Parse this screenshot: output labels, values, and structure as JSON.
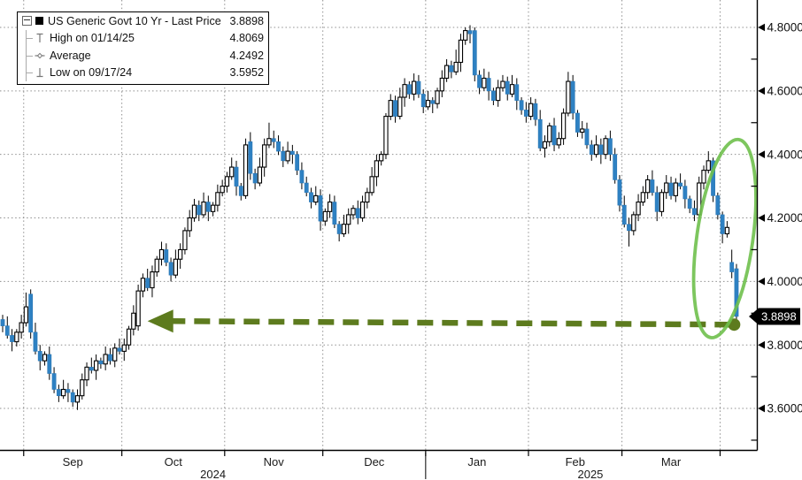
{
  "legend": {
    "series_label": "US Generic Govt 10 Yr - Last Price",
    "series_value": "3.8898",
    "items": [
      {
        "icon": "high-marker-icon",
        "label": "High on 01/14/25",
        "value": "4.8069"
      },
      {
        "icon": "average-marker-icon",
        "label": "Average",
        "value": "4.2492"
      },
      {
        "icon": "low-marker-icon",
        "label": "Low on 09/17/24",
        "value": "3.5952"
      }
    ]
  },
  "chart_data": {
    "type": "candlestick",
    "title": "US Generic Govt 10 Yr - Last Price",
    "grid": true,
    "legend_position": "top-left",
    "y_axis": {
      "side": "right",
      "min": 3.47,
      "max": 4.89,
      "major_ticks": [
        4.8,
        4.6,
        4.4,
        4.2,
        4.0,
        3.8,
        3.6
      ],
      "major_labels": [
        "4.8000",
        "4.6000",
        "4.4000",
        "4.2000",
        "4.0000",
        "3.8000",
        "3.6000"
      ],
      "minor_step": 0.1
    },
    "x_axis": {
      "months": [
        {
          "label": "Sep",
          "start_index": 5
        },
        {
          "label": "Oct",
          "start_index": 26
        },
        {
          "label": "Nov",
          "start_index": 48
        },
        {
          "label": "Dec",
          "start_index": 69
        },
        {
          "label": "Jan",
          "start_index": 91
        },
        {
          "label": "Feb",
          "start_index": 113
        },
        {
          "label": "Mar",
          "start_index": 133
        },
        {
          "label": "",
          "start_index": 154
        }
      ],
      "years": [
        {
          "label": "2024",
          "from_index": -0.5,
          "to_index": 90.5
        },
        {
          "label": "2025",
          "from_index": 90.5,
          "to_index": 161.0
        }
      ]
    },
    "last_price": {
      "value": 3.8898,
      "label": "3.8898"
    },
    "high_annotation": {
      "date": "01/14/25",
      "value": 4.8069
    },
    "average": 4.2492,
    "low_annotation": {
      "date": "09/17/24",
      "value": 3.5952
    },
    "colors": {
      "up_fill": "#ffffff",
      "up_border": "#000000",
      "down_fill": "#2e81c3",
      "down_border": "#2a77b5",
      "wick": "#000000",
      "grid": "#8f8f8f",
      "axis": "#000000",
      "tag_bg": "#000000",
      "tag_text": "#ffffff",
      "ellipse": "#6fc04d",
      "arrow": "#5d7b1e"
    },
    "annotations": {
      "highlight_ellipse": {
        "from_index": 148.5,
        "to_index": 160.5,
        "top_price": 4.45,
        "bottom_price": 3.82,
        "rotate_deg": 8
      },
      "arrow_to_last_price": {
        "dot_index": 156.5,
        "dot_price": 3.864,
        "tip_index": 31,
        "tip_price": 3.875
      }
    },
    "candles": [
      [
        3.88,
        3.895,
        3.84,
        3.86
      ],
      [
        3.86,
        3.89,
        3.82,
        3.83
      ],
      [
        3.83,
        3.85,
        3.78,
        3.81
      ],
      [
        3.81,
        3.85,
        3.795,
        3.84
      ],
      [
        3.84,
        3.895,
        3.82,
        3.87
      ],
      [
        3.87,
        3.965,
        3.858,
        3.92
      ],
      [
        3.96,
        3.975,
        3.82,
        3.84
      ],
      [
        3.84,
        3.87,
        3.77,
        3.78
      ],
      [
        3.78,
        3.8,
        3.72,
        3.75
      ],
      [
        3.75,
        3.78,
        3.735,
        3.77
      ],
      [
        3.77,
        3.795,
        3.69,
        3.71
      ],
      [
        3.71,
        3.73,
        3.648,
        3.66
      ],
      [
        3.66,
        3.675,
        3.62,
        3.64
      ],
      [
        3.64,
        3.69,
        3.63,
        3.66
      ],
      [
        3.66,
        3.68,
        3.62,
        3.65
      ],
      [
        3.65,
        3.66,
        3.605,
        3.62
      ],
      [
        3.62,
        3.66,
        3.5952,
        3.64
      ],
      [
        3.64,
        3.71,
        3.628,
        3.69
      ],
      [
        3.69,
        3.745,
        3.67,
        3.73
      ],
      [
        3.73,
        3.76,
        3.71,
        3.72
      ],
      [
        3.72,
        3.77,
        3.69,
        3.75
      ],
      [
        3.75,
        3.76,
        3.725,
        3.74
      ],
      [
        3.74,
        3.795,
        3.72,
        3.77
      ],
      [
        3.77,
        3.79,
        3.738,
        3.75
      ],
      [
        3.75,
        3.805,
        3.73,
        3.79
      ],
      [
        3.79,
        3.82,
        3.77,
        3.78
      ],
      [
        3.78,
        3.82,
        3.75,
        3.8
      ],
      [
        3.8,
        3.86,
        3.785,
        3.85
      ],
      [
        3.85,
        3.925,
        3.83,
        3.9
      ],
      [
        3.86,
        3.99,
        3.845,
        3.97
      ],
      [
        3.97,
        4.025,
        3.95,
        4.01
      ],
      [
        4.01,
        4.04,
        3.97,
        3.98
      ],
      [
        3.98,
        4.05,
        3.95,
        4.03
      ],
      [
        4.03,
        4.08,
        4.015,
        4.07
      ],
      [
        4.07,
        4.125,
        4.05,
        4.1
      ],
      [
        4.1,
        4.12,
        4.048,
        4.06
      ],
      [
        4.06,
        4.075,
        4.0,
        4.02
      ],
      [
        4.02,
        4.1,
        4.01,
        4.07
      ],
      [
        4.07,
        4.12,
        4.04,
        4.1
      ],
      [
        4.1,
        4.17,
        4.085,
        4.16
      ],
      [
        4.16,
        4.225,
        4.14,
        4.2
      ],
      [
        4.2,
        4.26,
        4.188,
        4.24
      ],
      [
        4.24,
        4.255,
        4.19,
        4.21
      ],
      [
        4.21,
        4.28,
        4.2,
        4.25
      ],
      [
        4.25,
        4.27,
        4.19,
        4.22
      ],
      [
        4.22,
        4.25,
        4.205,
        4.24
      ],
      [
        4.24,
        4.305,
        4.22,
        4.28
      ],
      [
        4.28,
        4.32,
        4.268,
        4.3
      ],
      [
        4.3,
        4.345,
        4.28,
        4.33
      ],
      [
        4.33,
        4.39,
        4.32,
        4.36
      ],
      [
        4.36,
        4.38,
        4.27,
        4.3
      ],
      [
        4.3,
        4.31,
        4.255,
        4.27
      ],
      [
        4.27,
        4.45,
        4.26,
        4.43
      ],
      [
        4.44,
        4.47,
        4.32,
        4.34
      ],
      [
        4.34,
        4.355,
        4.29,
        4.31
      ],
      [
        4.31,
        4.39,
        4.3,
        4.36
      ],
      [
        4.36,
        4.45,
        4.33,
        4.43
      ],
      [
        4.43,
        4.5,
        4.42,
        4.45
      ],
      [
        4.45,
        4.475,
        4.42,
        4.44
      ],
      [
        4.44,
        4.46,
        4.398,
        4.41
      ],
      [
        4.41,
        4.425,
        4.36,
        4.38
      ],
      [
        4.38,
        4.44,
        4.37,
        4.41
      ],
      [
        4.41,
        4.43,
        4.37,
        4.4
      ],
      [
        4.4,
        4.41,
        4.335,
        4.35
      ],
      [
        4.35,
        4.375,
        4.29,
        4.31
      ],
      [
        4.31,
        4.33,
        4.268,
        4.28
      ],
      [
        4.28,
        4.295,
        4.23,
        4.25
      ],
      [
        4.25,
        4.3,
        4.24,
        4.27
      ],
      [
        4.27,
        4.29,
        4.16,
        4.19
      ],
      [
        4.19,
        4.23,
        4.175,
        4.22
      ],
      [
        4.22,
        4.275,
        4.2,
        4.25
      ],
      [
        4.25,
        4.27,
        4.168,
        4.18
      ],
      [
        4.18,
        4.19,
        4.126,
        4.15
      ],
      [
        4.15,
        4.21,
        4.14,
        4.18
      ],
      [
        4.18,
        4.23,
        4.15,
        4.21
      ],
      [
        4.21,
        4.24,
        4.195,
        4.23
      ],
      [
        4.23,
        4.255,
        4.18,
        4.2
      ],
      [
        4.2,
        4.27,
        4.188,
        4.25
      ],
      [
        4.25,
        4.295,
        4.23,
        4.28
      ],
      [
        4.28,
        4.36,
        4.27,
        4.33
      ],
      [
        4.33,
        4.4,
        4.3,
        4.38
      ],
      [
        4.38,
        4.41,
        4.365,
        4.4
      ],
      [
        4.4,
        4.53,
        4.385,
        4.52
      ],
      [
        4.52,
        4.59,
        4.508,
        4.57
      ],
      [
        4.57,
        4.585,
        4.5,
        4.52
      ],
      [
        4.52,
        4.61,
        4.51,
        4.58
      ],
      [
        4.58,
        4.64,
        4.55,
        4.62
      ],
      [
        4.62,
        4.63,
        4.575,
        4.59
      ],
      [
        4.59,
        4.655,
        4.57,
        4.63
      ],
      [
        4.63,
        4.65,
        4.578,
        4.59
      ],
      [
        4.59,
        4.605,
        4.53,
        4.55
      ],
      [
        4.55,
        4.6,
        4.54,
        4.57
      ],
      [
        4.57,
        4.58,
        4.53,
        4.56
      ],
      [
        4.56,
        4.61,
        4.545,
        4.6
      ],
      [
        4.6,
        4.665,
        4.58,
        4.64
      ],
      [
        4.64,
        4.7,
        4.628,
        4.68
      ],
      [
        4.68,
        4.695,
        4.64,
        4.66
      ],
      [
        4.66,
        4.73,
        4.65,
        4.69
      ],
      [
        4.69,
        4.78,
        4.66,
        4.76
      ],
      [
        4.76,
        4.8,
        4.745,
        4.79
      ],
      [
        4.79,
        4.8069,
        4.75,
        4.78
      ],
      [
        4.79,
        4.8,
        4.63,
        4.65
      ],
      [
        4.65,
        4.665,
        4.59,
        4.61
      ],
      [
        4.61,
        4.67,
        4.6,
        4.64
      ],
      [
        4.64,
        4.66,
        4.57,
        4.6
      ],
      [
        4.6,
        4.61,
        4.555,
        4.57
      ],
      [
        4.57,
        4.635,
        4.55,
        4.61
      ],
      [
        4.61,
        4.65,
        4.598,
        4.63
      ],
      [
        4.63,
        4.645,
        4.57,
        4.59
      ],
      [
        4.59,
        4.65,
        4.58,
        4.62
      ],
      [
        4.62,
        4.64,
        4.54,
        4.57
      ],
      [
        4.57,
        4.58,
        4.525,
        4.54
      ],
      [
        4.54,
        4.565,
        4.5,
        4.52
      ],
      [
        4.52,
        4.58,
        4.508,
        4.56
      ],
      [
        4.56,
        4.575,
        4.49,
        4.51
      ],
      [
        4.51,
        4.54,
        4.41,
        4.42
      ],
      [
        4.42,
        4.46,
        4.39,
        4.44
      ],
      [
        4.44,
        4.5,
        4.425,
        4.49
      ],
      [
        4.49,
        4.515,
        4.41,
        4.43
      ],
      [
        4.43,
        4.47,
        4.418,
        4.45
      ],
      [
        4.45,
        4.545,
        4.43,
        4.53
      ],
      [
        4.53,
        4.66,
        4.52,
        4.63
      ],
      [
        4.63,
        4.65,
        4.51,
        4.53
      ],
      [
        4.53,
        4.54,
        4.455,
        4.47
      ],
      [
        4.47,
        4.505,
        4.45,
        4.48
      ],
      [
        4.48,
        4.5,
        4.418,
        4.43
      ],
      [
        4.43,
        4.445,
        4.38,
        4.4
      ],
      [
        4.4,
        4.46,
        4.39,
        4.43
      ],
      [
        4.43,
        4.45,
        4.37,
        4.4
      ],
      [
        4.4,
        4.46,
        4.385,
        4.45
      ],
      [
        4.45,
        4.475,
        4.38,
        4.4
      ],
      [
        4.4,
        4.42,
        4.308,
        4.32
      ],
      [
        4.32,
        4.335,
        4.22,
        4.24
      ],
      [
        4.24,
        4.27,
        4.17,
        4.18
      ],
      [
        4.18,
        4.2,
        4.11,
        4.16
      ],
      [
        4.16,
        4.22,
        4.145,
        4.21
      ],
      [
        4.21,
        4.275,
        4.19,
        4.25
      ],
      [
        4.25,
        4.3,
        4.238,
        4.28
      ],
      [
        4.28,
        4.335,
        4.26,
        4.32
      ],
      [
        4.32,
        4.35,
        4.27,
        4.28
      ],
      [
        4.28,
        4.3,
        4.19,
        4.22
      ],
      [
        4.22,
        4.29,
        4.205,
        4.28
      ],
      [
        4.28,
        4.335,
        4.26,
        4.31
      ],
      [
        4.31,
        4.33,
        4.258,
        4.27
      ],
      [
        4.27,
        4.325,
        4.25,
        4.31
      ],
      [
        4.31,
        4.34,
        4.29,
        4.3
      ],
      [
        4.3,
        4.32,
        4.23,
        4.26
      ],
      [
        4.26,
        4.27,
        4.215,
        4.23
      ],
      [
        4.23,
        4.255,
        4.19,
        4.21
      ],
      [
        4.21,
        4.33,
        4.198,
        4.31
      ],
      [
        4.31,
        4.365,
        4.29,
        4.35
      ],
      [
        4.35,
        4.41,
        4.34,
        4.38
      ],
      [
        4.38,
        4.39,
        4.25,
        4.27
      ],
      [
        4.27,
        4.28,
        4.195,
        4.21
      ],
      [
        4.21,
        4.22,
        4.12,
        4.15
      ],
      [
        4.15,
        4.19,
        4.138,
        4.17
      ],
      [
        4.06,
        4.1,
        4.01,
        4.03
      ],
      [
        4.04,
        4.055,
        3.86,
        3.8898
      ]
    ]
  }
}
